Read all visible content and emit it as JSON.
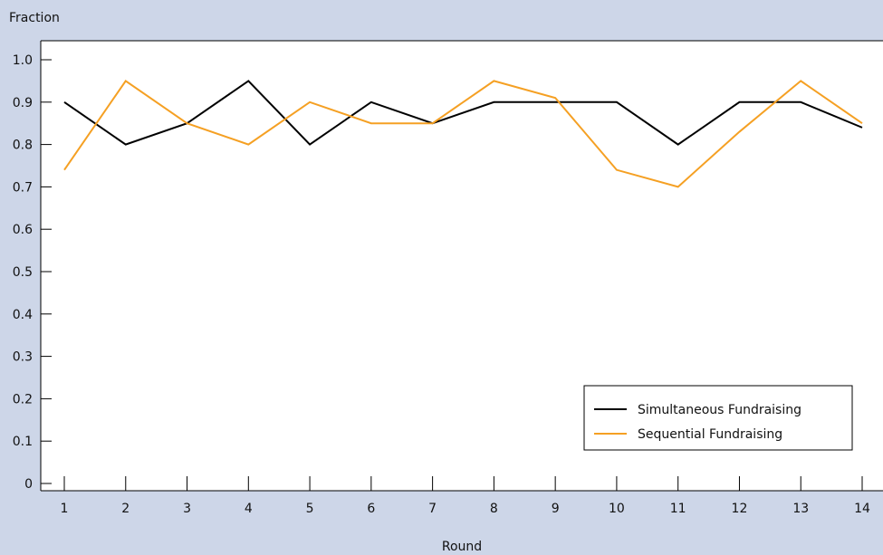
{
  "chart_data": {
    "type": "line",
    "title": "",
    "xlabel": "Round",
    "ylabel": "Fraction",
    "x": [
      1,
      2,
      3,
      4,
      5,
      6,
      7,
      8,
      9,
      10,
      11,
      12,
      13,
      14
    ],
    "xlim": [
      1,
      14
    ],
    "ylim": [
      0,
      1.0
    ],
    "yticks": [
      "0",
      "0.1",
      "0.2",
      "0.3",
      "0.4",
      "0.5",
      "0.6",
      "0.7",
      "0.8",
      "0.9",
      "1.0"
    ],
    "xticks": [
      "1",
      "2",
      "3",
      "4",
      "5",
      "6",
      "7",
      "8",
      "9",
      "10",
      "11",
      "12",
      "13",
      "14"
    ],
    "grid": false,
    "legend_position": "bottom-right",
    "series": [
      {
        "name": "Simultaneous Fundraising",
        "color": "#000000",
        "values": [
          0.9,
          0.8,
          0.85,
          0.95,
          0.8,
          0.9,
          0.85,
          0.9,
          0.9,
          0.9,
          0.8,
          0.9,
          0.9,
          0.84
        ]
      },
      {
        "name": "Sequential Fundraising",
        "color": "#f5a023",
        "values": [
          0.74,
          0.95,
          0.85,
          0.8,
          0.9,
          0.85,
          0.85,
          0.95,
          0.91,
          0.74,
          0.7,
          0.83,
          0.95,
          0.85
        ]
      }
    ]
  }
}
